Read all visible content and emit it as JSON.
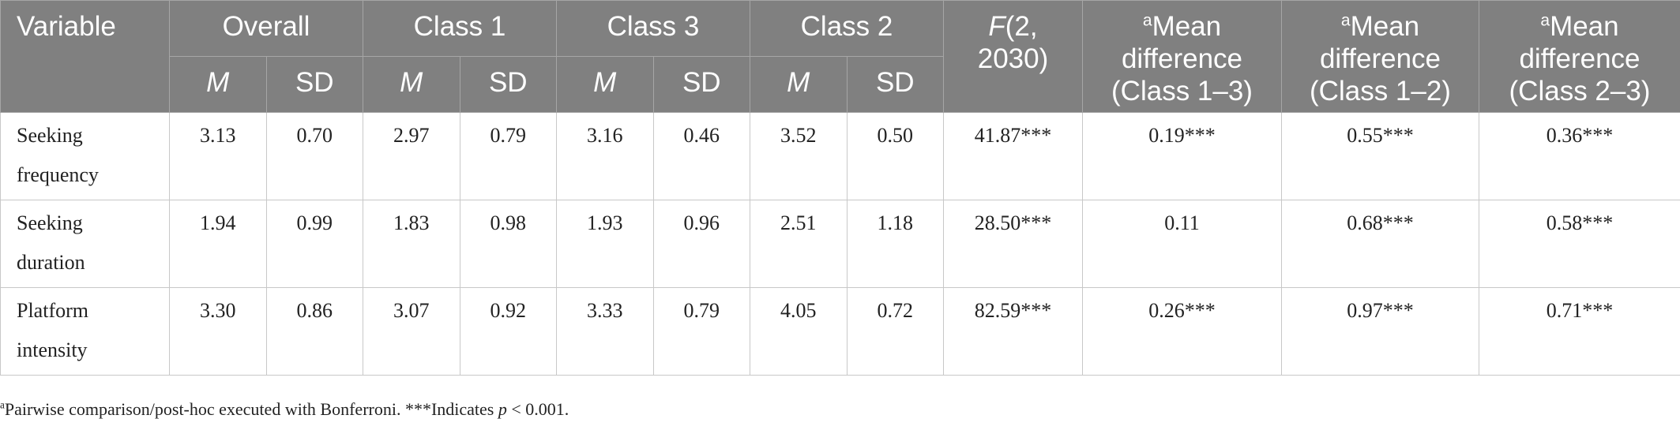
{
  "table": {
    "header": {
      "variable": "Variable",
      "groups": [
        "Overall",
        "Class 1",
        "Class 3",
        "Class 2"
      ],
      "sub": [
        "M",
        "SD"
      ],
      "f": {
        "italic": "F",
        "rest": "(2, 2030)"
      },
      "mean_diff": [
        {
          "sup": "a",
          "text": "Mean difference (Class 1–3)"
        },
        {
          "sup": "a",
          "text": "Mean difference (Class 1–2)"
        },
        {
          "sup": "a",
          "text": "Mean difference (Class 2–3)"
        }
      ]
    },
    "rows": [
      [
        "Seeking frequency",
        "3.13",
        "0.70",
        "2.97",
        "0.79",
        "3.16",
        "0.46",
        "3.52",
        "0.50",
        "41.87***",
        "0.19***",
        "0.55***",
        "0.36***"
      ],
      [
        "Seeking duration",
        "1.94",
        "0.99",
        "1.83",
        "0.98",
        "1.93",
        "0.96",
        "2.51",
        "1.18",
        "28.50***",
        "0.11",
        "0.68***",
        "0.58***"
      ],
      [
        "Platform intensity",
        "3.30",
        "0.86",
        "3.07",
        "0.92",
        "3.33",
        "0.79",
        "4.05",
        "0.72",
        "82.59***",
        "0.26***",
        "0.97***",
        "0.71***"
      ]
    ]
  },
  "footnote": {
    "sup": "a",
    "text": "Pairwise comparison/post-hoc executed with Bonferroni. ***Indicates ",
    "italic": "p",
    "rest": " < 0.001."
  }
}
